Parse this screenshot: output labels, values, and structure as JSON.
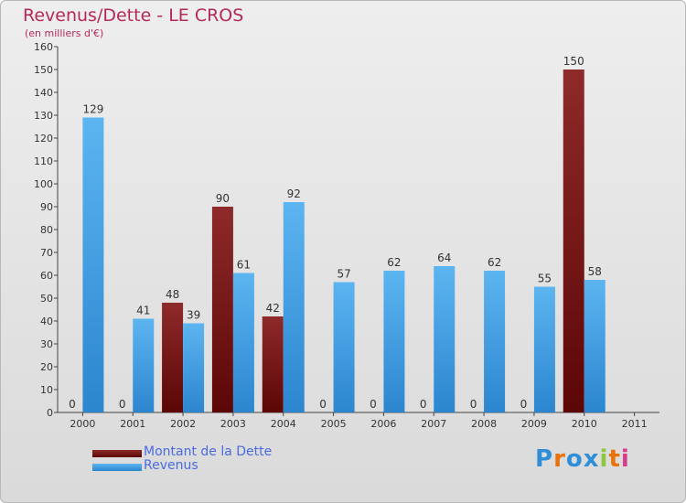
{
  "chart_data": {
    "type": "bar",
    "title": "Revenus/Dette - LE CROS",
    "subtitle": "(en milliers d'€)",
    "categories": [
      "2000",
      "2001",
      "2002",
      "2003",
      "2004",
      "2005",
      "2006",
      "2007",
      "2008",
      "2009",
      "2010",
      "2011"
    ],
    "series": [
      {
        "name": "Montant de la Dette",
        "color": "#7a1a1a",
        "values": [
          0,
          0,
          48,
          90,
          42,
          0,
          0,
          0,
          0,
          0,
          150,
          null
        ]
      },
      {
        "name": "Revenus",
        "color": "#4aa3e8",
        "values": [
          129,
          41,
          39,
          61,
          92,
          57,
          62,
          64,
          62,
          55,
          58,
          null
        ]
      }
    ],
    "ylim": [
      0,
      160
    ],
    "yticks": [
      0,
      10,
      20,
      30,
      40,
      50,
      60,
      70,
      80,
      90,
      100,
      110,
      120,
      130,
      140,
      150,
      160
    ],
    "grid": false,
    "legend": "bottom-left"
  },
  "logo": {
    "text": "Proxiti",
    "colors": [
      "#2e8fd8",
      "#e8720c",
      "#2e8fd8",
      "#2e8fd8",
      "#8dc63f",
      "#e8720c",
      "#d63c8c"
    ]
  }
}
